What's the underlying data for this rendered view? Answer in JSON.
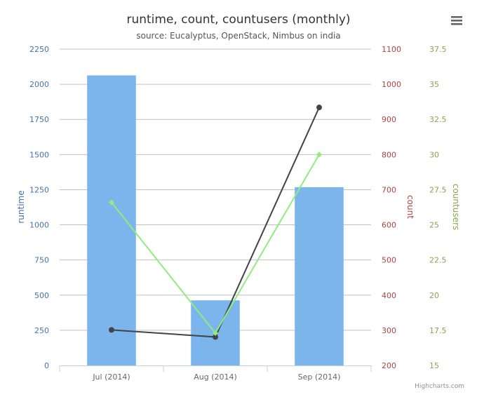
{
  "chart_data": {
    "type": "bar",
    "title": "runtime, count, countusers (monthly)",
    "subtitle": "source: Eucalyptus, OpenStack, Nimbus on india",
    "categories": [
      "Jul (2014)",
      "Aug (2014)",
      "Sep (2014)"
    ],
    "series": [
      {
        "name": "runtime",
        "type": "bar",
        "axis": "runtime",
        "values": [
          2063,
          463,
          1268
        ],
        "color": "#7cb5ec"
      },
      {
        "name": "count",
        "type": "line",
        "axis": "count",
        "values": [
          301,
          281,
          934
        ],
        "color": "#434348"
      },
      {
        "name": "countusers",
        "type": "line",
        "axis": "countusers",
        "values": [
          26.6,
          17.3,
          30.0
        ],
        "color": "#90ed7d"
      }
    ],
    "axes": {
      "runtime": {
        "label": "runtime",
        "color": "#4572a7",
        "range": [
          0,
          2250
        ],
        "ticks": [
          "0",
          "250",
          "500",
          "750",
          "1000",
          "1250",
          "1500",
          "1750",
          "2000",
          "2250"
        ]
      },
      "count": {
        "label": "count",
        "color": "#aa4643",
        "range": [
          200,
          1100
        ],
        "ticks": [
          "200",
          "300",
          "400",
          "500",
          "600",
          "700",
          "800",
          "900",
          "1000",
          "1100"
        ]
      },
      "countusers": {
        "label": "countusers",
        "color": "#89a54e",
        "range": [
          15,
          37.5
        ],
        "ticks": [
          "15",
          "17.5",
          "20",
          "22.5",
          "25",
          "27.5",
          "30",
          "32.5",
          "35",
          "37.5"
        ]
      }
    },
    "grid": true,
    "legend": "none"
  },
  "credits": "Highcharts.com",
  "menu_icon": "hamburger-menu-icon"
}
